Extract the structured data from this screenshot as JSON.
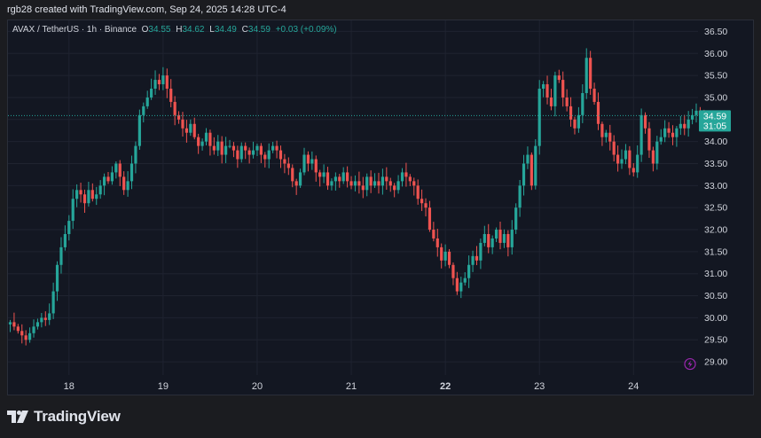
{
  "header": {
    "credit": "rgb28 created with TradingView.com, Sep 24, 2025 14:28 UTC-4"
  },
  "legend": {
    "symbol": "AVAX / TetherUS · 1h · Binance",
    "o_label": "O",
    "o_value": "34.55",
    "h_label": "H",
    "h_value": "34.62",
    "l_label": "L",
    "l_value": "34.49",
    "c_label": "C",
    "c_value": "34.59",
    "change": "+0.03 (+0.09%)"
  },
  "price_tag": {
    "price": "34.59",
    "countdown": "31:05"
  },
  "footer": {
    "brand": "TradingView"
  },
  "colors": {
    "up": "#26a69a",
    "down": "#ef5350",
    "grid": "#1f2330",
    "axis_text": "#d1d4dc",
    "background": "#131722",
    "last_price": "#26a69a",
    "marker": "#9c27b0"
  },
  "chart_data": {
    "type": "candlestick",
    "y_axis": {
      "min": 28.7,
      "max": 36.75,
      "side": "right",
      "ticks": [
        "29.00",
        "29.50",
        "30.00",
        "30.50",
        "31.00",
        "31.50",
        "32.00",
        "32.50",
        "33.00",
        "33.50",
        "34.00",
        "34.50",
        "35.00",
        "35.50",
        "36.00",
        "36.50"
      ]
    },
    "x_axis": {
      "ticks": [
        "18",
        "19",
        "20",
        "21",
        "22",
        "23",
        "24"
      ],
      "bold_ticks": [
        "22"
      ],
      "tick_bar_index": [
        15,
        39,
        63,
        87,
        111,
        135,
        159
      ]
    },
    "last_price": 34.59,
    "grid": true,
    "close_series": [
      29.9,
      29.8,
      29.7,
      29.6,
      29.5,
      29.65,
      29.8,
      29.9,
      30.0,
      29.95,
      30.1,
      30.6,
      31.2,
      31.6,
      31.9,
      32.2,
      32.7,
      32.9,
      32.8,
      32.6,
      32.9,
      32.7,
      32.8,
      33.0,
      33.2,
      33.1,
      33.3,
      33.5,
      33.2,
      32.9,
      33.1,
      33.5,
      33.9,
      34.6,
      34.8,
      35.0,
      35.2,
      35.4,
      35.3,
      35.5,
      35.2,
      34.9,
      34.6,
      34.5,
      34.3,
      34.2,
      34.4,
      34.1,
      33.9,
      34.0,
      34.2,
      33.9,
      33.8,
      34.0,
      33.7,
      33.9,
      33.9,
      33.8,
      33.6,
      33.9,
      33.8,
      33.7,
      33.8,
      33.9,
      33.7,
      33.6,
      33.8,
      33.9,
      33.8,
      33.6,
      33.5,
      33.4,
      33.1,
      33.0,
      33.3,
      33.7,
      33.5,
      33.6,
      33.3,
      33.2,
      33.3,
      33.0,
      33.1,
      33.2,
      33.1,
      33.3,
      33.1,
      33.0,
      33.1,
      33.0,
      32.9,
      33.2,
      33.0,
      33.1,
      33.0,
      33.2,
      33.1,
      33.0,
      32.9,
      33.1,
      33.3,
      33.2,
      33.1,
      33.0,
      32.7,
      32.6,
      32.5,
      32.0,
      31.8,
      31.6,
      31.3,
      31.5,
      31.2,
      30.9,
      30.6,
      30.8,
      30.9,
      31.2,
      31.4,
      31.3,
      31.7,
      31.9,
      31.6,
      31.8,
      32.0,
      31.7,
      31.9,
      31.6,
      32.0,
      32.5,
      33.0,
      33.5,
      33.7,
      33.0,
      33.9,
      35.2,
      35.3,
      35.0,
      34.8,
      35.5,
      35.4,
      35.0,
      34.8,
      34.5,
      34.3,
      34.6,
      35.1,
      35.9,
      35.2,
      34.9,
      34.4,
      34.1,
      34.2,
      34.0,
      33.7,
      33.5,
      33.6,
      33.8,
      33.4,
      33.3,
      33.7,
      34.6,
      34.3,
      33.8,
      33.5,
      34.0,
      34.1,
      34.3,
      34.2,
      34.1,
      34.3,
      34.4,
      34.3,
      34.5,
      34.6,
      34.7,
      34.6,
      34.59
    ]
  }
}
